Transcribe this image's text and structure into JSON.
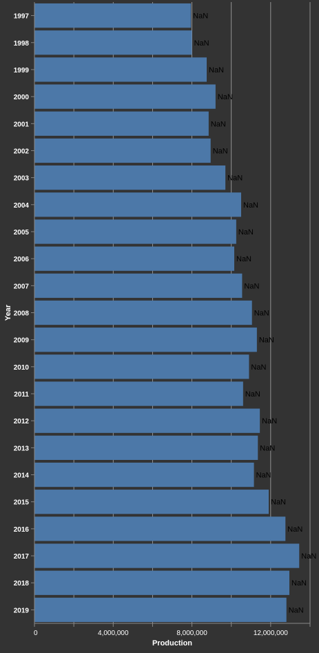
{
  "chart_data": {
    "type": "bar",
    "orientation": "horizontal",
    "categories": [
      "1997",
      "1998",
      "1999",
      "2000",
      "2001",
      "2002",
      "2003",
      "2004",
      "2005",
      "2006",
      "2007",
      "2008",
      "2009",
      "2010",
      "2011",
      "2012",
      "2013",
      "2014",
      "2015",
      "2016",
      "2017",
      "2018",
      "2019"
    ],
    "values": [
      7950000,
      8000000,
      8750000,
      9200000,
      8850000,
      8950000,
      9700000,
      10500000,
      10250000,
      10150000,
      10550000,
      11050000,
      11300000,
      10900000,
      10600000,
      11450000,
      11350000,
      11150000,
      11900000,
      12750000,
      13450000,
      12950000,
      12800000
    ],
    "data_labels": [
      "NaN",
      "NaN",
      "NaN",
      "NaN",
      "NaN",
      "NaN",
      "NaN",
      "NaN",
      "NaN",
      "NaN",
      "NaN",
      "NaN",
      "NaN",
      "NaN",
      "NaN",
      "NaN",
      "NaN",
      "NaN",
      "NaN",
      "NaN",
      "NaN",
      "NaN",
      "NaN"
    ],
    "xlabel": "Production",
    "ylabel": "Year",
    "xlim": [
      0,
      14000000
    ],
    "x_ticks": [
      0,
      4000000,
      8000000,
      12000000
    ],
    "x_tick_labels": [
      "0",
      "4,000,000",
      "8,000,000",
      "12,000,000"
    ],
    "x_grid_step": 2000000,
    "grid": true,
    "colors": {
      "background": "#333333",
      "bar": "#4c78a8",
      "grid": "#aaaaaa",
      "text": "#ffffff",
      "label": "#000000"
    }
  }
}
